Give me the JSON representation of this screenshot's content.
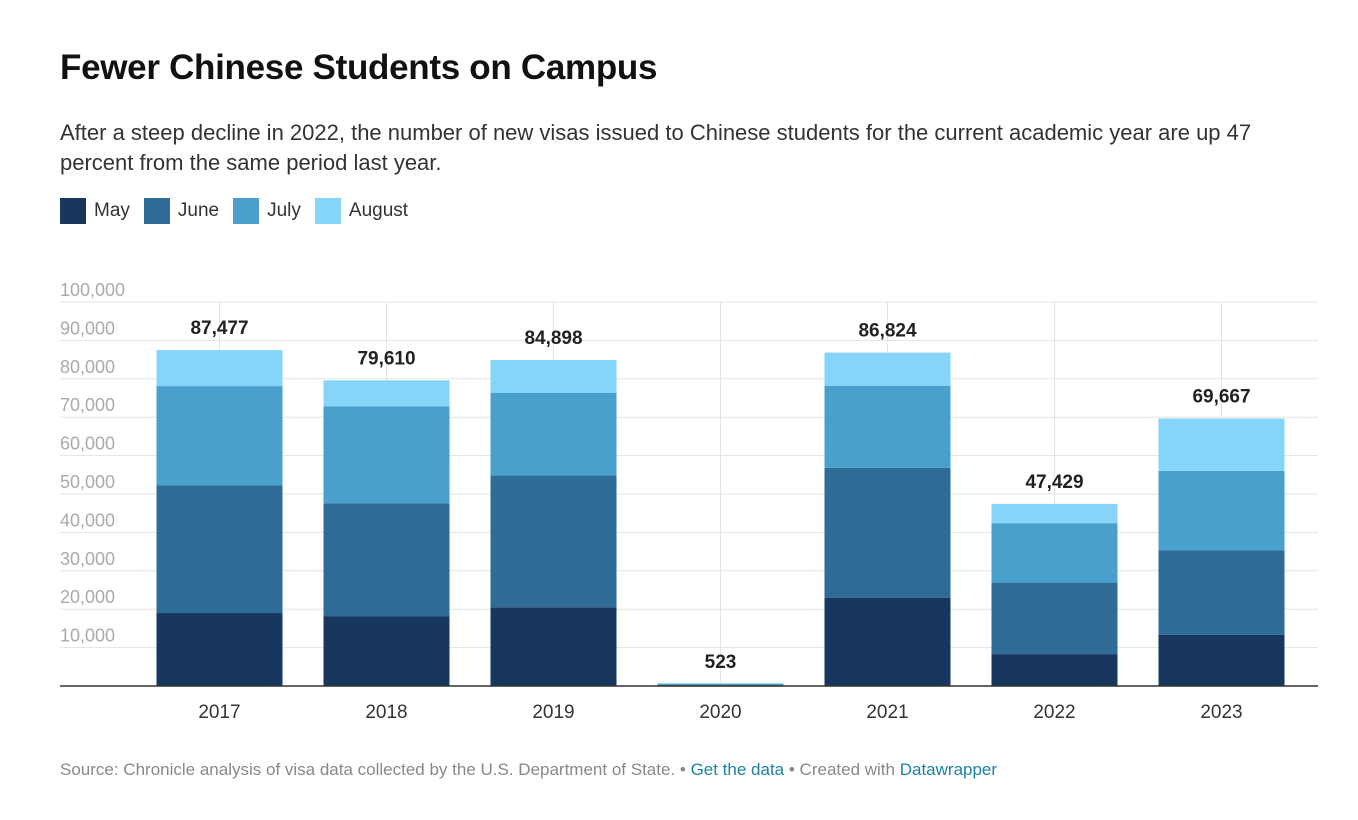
{
  "title": "Fewer Chinese Students on Campus",
  "subtitle": "After a steep decline in 2022, the number of new visas issued to Chinese students for the current academic year are up 47 percent from the same period last year.",
  "legend": [
    {
      "label": "May",
      "color": "#17375e"
    },
    {
      "label": "June",
      "color": "#2e6b96"
    },
    {
      "label": "July",
      "color": "#4aa0cd"
    },
    {
      "label": "August",
      "color": "#86d5f8"
    }
  ],
  "chart_data": {
    "type": "bar",
    "stacked": true,
    "categories": [
      "2017",
      "2018",
      "2019",
      "2020",
      "2021",
      "2022",
      "2023"
    ],
    "series": [
      {
        "name": "May",
        "values": [
          19000,
          18200,
          20500,
          170,
          23000,
          8300,
          13300
        ]
      },
      {
        "name": "June",
        "values": [
          33300,
          29400,
          34300,
          150,
          33800,
          18700,
          22000
        ]
      },
      {
        "name": "July",
        "values": [
          25800,
          25200,
          21500,
          130,
          21400,
          15400,
          20700
        ]
      },
      {
        "name": "August",
        "values": [
          9377,
          6810,
          8598,
          73,
          8624,
          5029,
          13667
        ]
      }
    ],
    "totals": [
      "87,477",
      "79,610",
      "84,898",
      "523",
      "86,824",
      "47,429",
      "69,667"
    ],
    "ylim": [
      0,
      100000
    ],
    "yticks": [
      {
        "value": 10000,
        "label": "10,000"
      },
      {
        "value": 20000,
        "label": "20,000"
      },
      {
        "value": 30000,
        "label": "30,000"
      },
      {
        "value": 40000,
        "label": "40,000"
      },
      {
        "value": 50000,
        "label": "50,000"
      },
      {
        "value": 60000,
        "label": "60,000"
      },
      {
        "value": 70000,
        "label": "70,000"
      },
      {
        "value": 80000,
        "label": "80,000"
      },
      {
        "value": 90000,
        "label": "90,000"
      },
      {
        "value": 100000,
        "label": "100,000"
      }
    ],
    "grid": true,
    "legend_position": "top-left"
  },
  "footer": {
    "source": "Source: Chronicle analysis of visa data collected by the U.S. Department of State.",
    "separator": " • ",
    "get_data": "Get the data",
    "created_with": "Created with",
    "datawrapper": "Datawrapper"
  }
}
